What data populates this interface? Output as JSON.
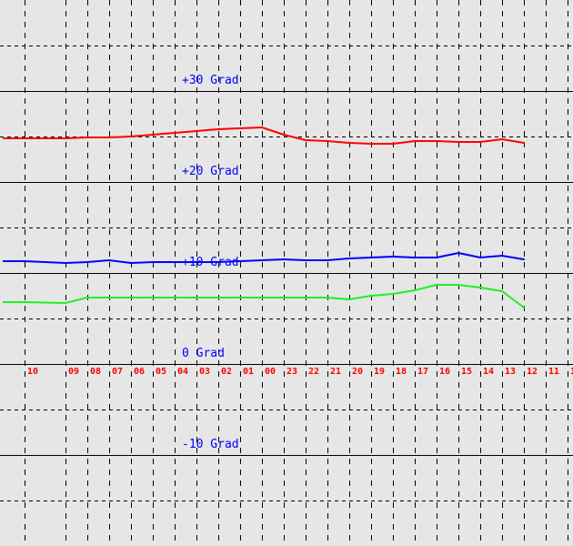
{
  "chart_data": {
    "type": "line",
    "title": "",
    "xlabel": "",
    "ylabel": "",
    "ylim": [
      -20,
      40
    ],
    "grid": true,
    "x_direction": "reversed hours",
    "categories": [
      "10",
      "09",
      "08",
      "07",
      "06",
      "05",
      "04",
      "03",
      "02",
      "01",
      "00",
      "23",
      "22",
      "21",
      "20",
      "19",
      "18",
      "17",
      "16",
      "15",
      "14",
      "13",
      "12",
      "11",
      "1"
    ],
    "y_tick_labels": [
      {
        "value": 30,
        "label": "+30 Grad"
      },
      {
        "value": 20,
        "label": "+20 Grad"
      },
      {
        "value": 10,
        "label": "+10 Grad"
      },
      {
        "value": 0,
        "label": "0 Grad"
      },
      {
        "value": -10,
        "label": "-10 Grad"
      }
    ],
    "series": [
      {
        "color": "#ff0000",
        "values": [
          24.8,
          24.8,
          24.9,
          24.9,
          25.0,
          25.2,
          25.4,
          25.6,
          25.8,
          25.9,
          26.0,
          25.2,
          24.6,
          24.5,
          24.3,
          24.2,
          24.2,
          24.5,
          24.5,
          24.4,
          24.4,
          24.7,
          24.3,
          null,
          null
        ]
      },
      {
        "color": "#0000ff",
        "values": [
          11.3,
          11.1,
          11.2,
          11.4,
          11.1,
          11.2,
          11.2,
          11.2,
          11.2,
          11.3,
          11.4,
          11.5,
          11.4,
          11.4,
          11.6,
          11.7,
          11.8,
          11.7,
          11.7,
          12.2,
          11.7,
          11.9,
          11.5,
          null,
          null
        ]
      },
      {
        "color": "#22ee22",
        "values": [
          6.8,
          6.7,
          7.3,
          7.3,
          7.3,
          7.3,
          7.3,
          7.3,
          7.3,
          7.3,
          7.3,
          7.3,
          7.3,
          7.3,
          7.1,
          7.5,
          7.7,
          8.1,
          8.7,
          8.7,
          8.4,
          8.0,
          6.2,
          null,
          null
        ]
      }
    ],
    "colors": {
      "axis_label": "#0000ff",
      "x_label": "#ff0000",
      "grid": "#000000",
      "background": "#e6e6e6"
    }
  }
}
